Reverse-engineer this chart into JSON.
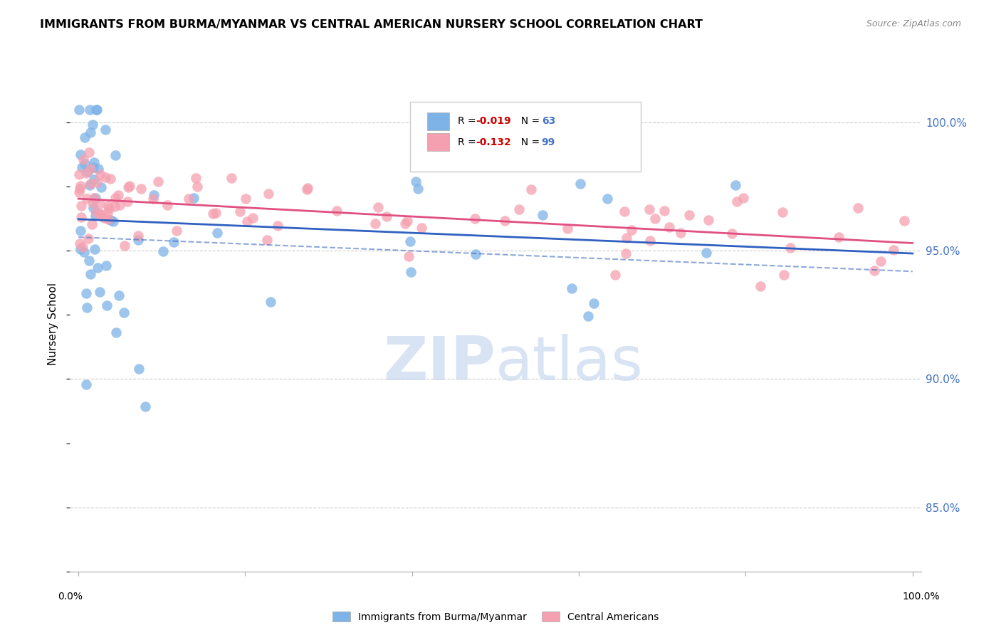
{
  "title": "IMMIGRANTS FROM BURMA/MYANMAR VS CENTRAL AMERICAN NURSERY SCHOOL CORRELATION CHART",
  "source": "Source: ZipAtlas.com",
  "ylabel": "Nursery School",
  "xlim": [
    0.0,
    100.0
  ],
  "ylim": [
    82.5,
    101.8
  ],
  "blue_R": "-0.019",
  "blue_N": "63",
  "pink_R": "-0.132",
  "pink_N": "99",
  "blue_color": "#7EB3E8",
  "pink_color": "#F5A0B0",
  "blue_line_color": "#3060C0",
  "pink_line_color": "#E05080",
  "dashed_line_color": "#7EB3E8",
  "yticks": [
    85.0,
    90.0,
    95.0,
    100.0
  ],
  "ytick_labels": [
    "85.0%",
    "90.0%",
    "95.0%",
    "100.0%"
  ],
  "grid_color": "#CCCCCC",
  "watermark_color": "#C8D8F0"
}
